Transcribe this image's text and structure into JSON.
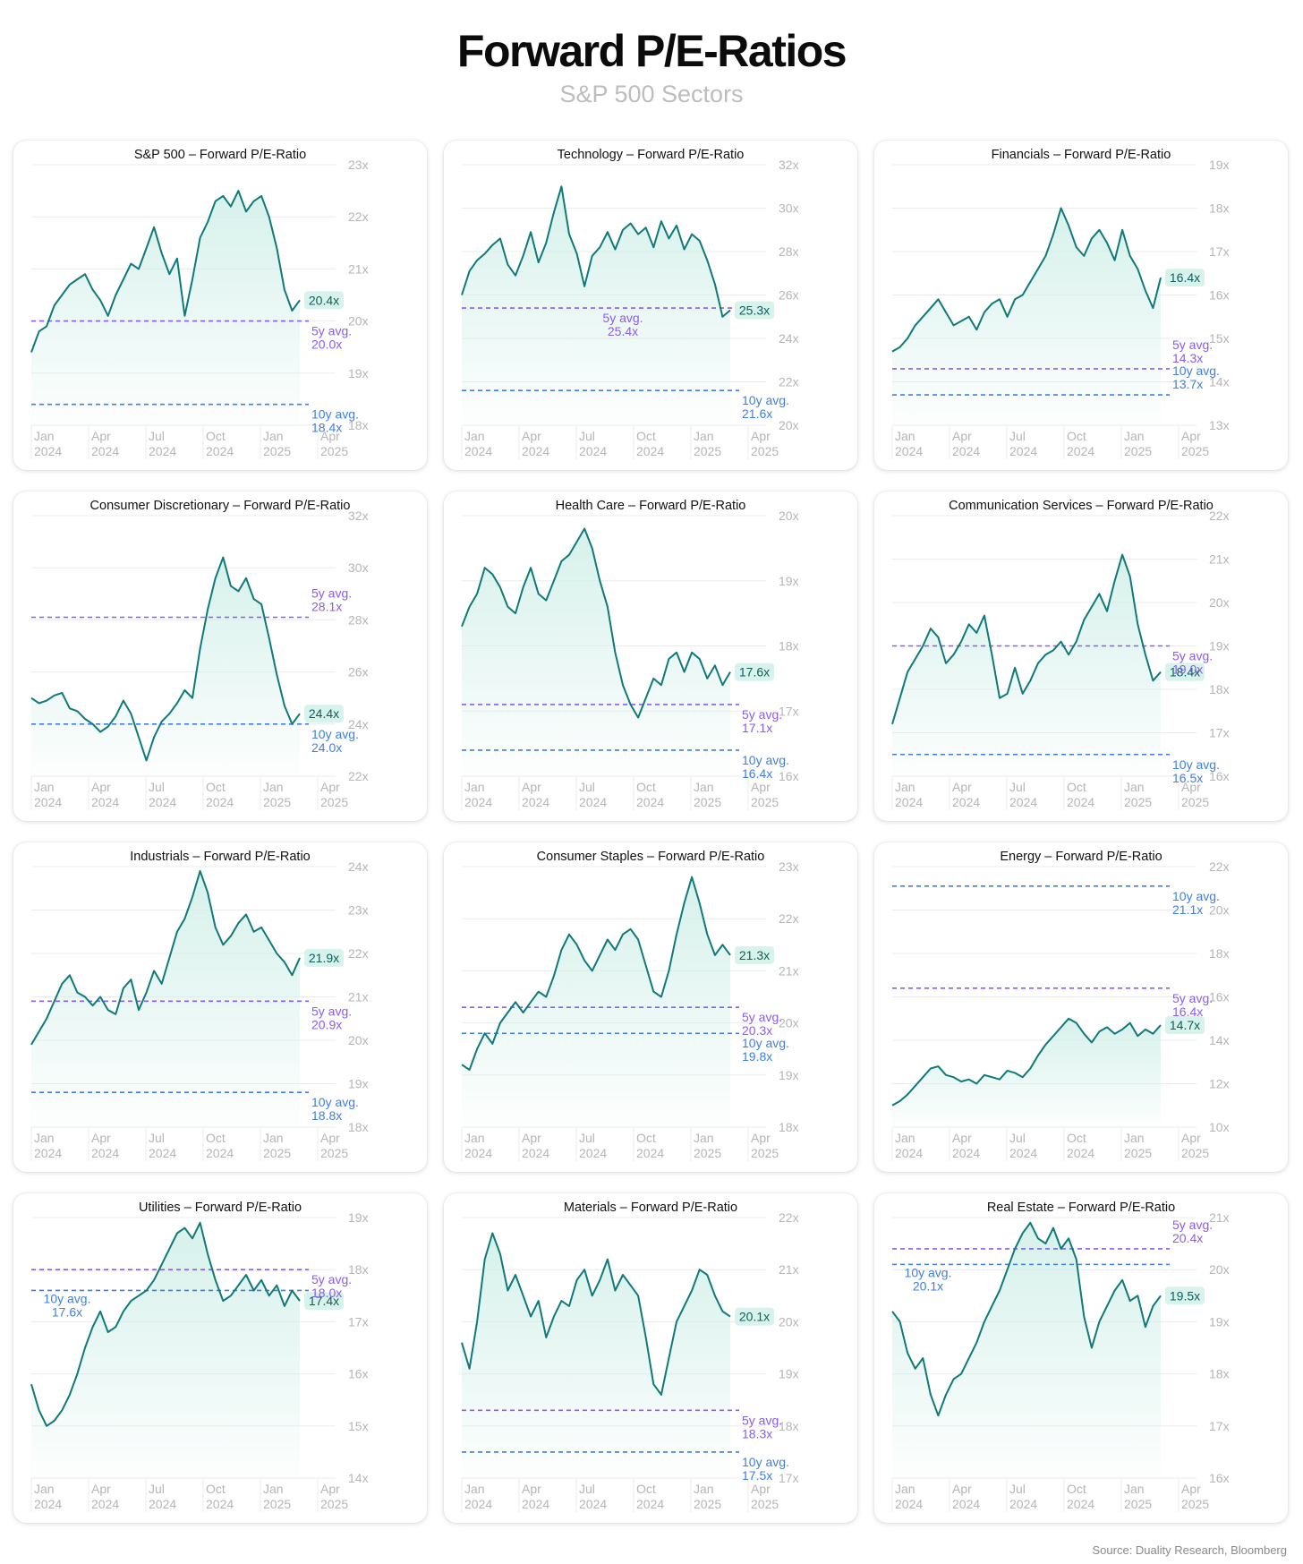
{
  "title": "Forward P/E-Ratios",
  "subtitle": "S&P 500 Sectors",
  "source": "Source: Duality Research, Bloomberg",
  "colors": {
    "line": "#0f7a78",
    "fill": "#d4f0ea",
    "avg5": "#8a5cf0",
    "avg10": "#3f7fe0",
    "badge": "#d8f3ec",
    "grid": "#ebebeb",
    "tick": "#b5b5b5"
  },
  "x_ticks": [
    {
      "month": "Jan",
      "year": "2024"
    },
    {
      "month": "Apr",
      "year": "2024"
    },
    {
      "month": "Jul",
      "year": "2024"
    },
    {
      "month": "Oct",
      "year": "2024"
    },
    {
      "month": "Jan",
      "year": "2025"
    },
    {
      "month": "Apr",
      "year": "2025"
    }
  ],
  "chart_data": [
    {
      "type": "line",
      "title": "S&P 500 – Forward P/E-Ratio",
      "ylim": [
        18,
        23
      ],
      "y_ticks": [
        "18x",
        "19x",
        "20x",
        "21x",
        "22x",
        "23x"
      ],
      "current": 20.4,
      "current_label": "20.4x",
      "avg5": 20.0,
      "avg5_label": [
        "5y avg.",
        "20.0x"
      ],
      "avg10": 18.4,
      "avg10_label": [
        "10y avg.",
        "18.4x"
      ],
      "series": [
        {
          "values": [
            19.4,
            19.8,
            19.9,
            20.3,
            20.5,
            20.7,
            20.8,
            20.9,
            20.6,
            20.4,
            20.1,
            20.5,
            20.8,
            21.1,
            21.0,
            21.4,
            21.8,
            21.3,
            20.9,
            21.2,
            20.1,
            20.8,
            21.6,
            21.9,
            22.3,
            22.4,
            22.2,
            22.5,
            22.1,
            22.3,
            22.4,
            22.0,
            21.4,
            20.6,
            20.2,
            20.4
          ]
        }
      ],
      "label_pos": {
        "current": "right",
        "avg5": "below",
        "avg10": "below"
      }
    },
    {
      "type": "line",
      "title": "Technology – Forward P/E-Ratio",
      "ylim": [
        20,
        32
      ],
      "y_ticks": [
        "20x",
        "22x",
        "24x",
        "26x",
        "28x",
        "30x",
        "32x"
      ],
      "current": 25.3,
      "current_label": "25.3x",
      "avg5": 25.4,
      "avg5_label": [
        "5y avg.",
        "25.4x"
      ],
      "avg10": 21.6,
      "avg10_label": [
        "10y avg.",
        "21.6x"
      ],
      "series": [
        {
          "values": [
            26.0,
            27.1,
            27.6,
            27.9,
            28.3,
            28.6,
            27.4,
            26.9,
            27.8,
            28.9,
            27.5,
            28.4,
            29.8,
            31.0,
            28.8,
            27.9,
            26.4,
            27.8,
            28.2,
            28.9,
            28.1,
            29.0,
            29.3,
            28.8,
            29.1,
            28.2,
            29.4,
            28.6,
            29.2,
            28.1,
            28.8,
            28.5,
            27.6,
            26.5,
            25.0,
            25.3
          ]
        }
      ],
      "label_pos": {
        "current": "right",
        "avg5": "mid-below",
        "avg10": "below"
      }
    },
    {
      "type": "line",
      "title": "Financials – Forward P/E-Ratio",
      "ylim": [
        13,
        19
      ],
      "y_ticks": [
        "13x",
        "14x",
        "15x",
        "16x",
        "17x",
        "18x",
        "19x"
      ],
      "current": 16.4,
      "current_label": "16.4x",
      "avg5": 14.3,
      "avg5_label": [
        "5y avg.",
        "14.3x"
      ],
      "avg10": 13.7,
      "avg10_label": [
        "10y avg.",
        "13.7x"
      ],
      "series": [
        {
          "values": [
            14.7,
            14.8,
            15.0,
            15.3,
            15.5,
            15.7,
            15.9,
            15.6,
            15.3,
            15.4,
            15.5,
            15.2,
            15.6,
            15.8,
            15.9,
            15.5,
            15.9,
            16.0,
            16.3,
            16.6,
            16.9,
            17.4,
            18.0,
            17.6,
            17.1,
            16.9,
            17.3,
            17.5,
            17.2,
            16.8,
            17.5,
            16.9,
            16.6,
            16.1,
            15.7,
            16.4
          ]
        }
      ],
      "label_pos": {
        "current": "right",
        "avg5": "above",
        "avg10": "above"
      }
    },
    {
      "type": "line",
      "title": "Consumer Discretionary – Forward P/E-Ratio",
      "ylim": [
        22,
        32
      ],
      "y_ticks": [
        "22x",
        "24x",
        "26x",
        "28x",
        "30x",
        "32x"
      ],
      "current": 24.4,
      "current_label": "24.4x",
      "avg5": 28.1,
      "avg5_label": [
        "5y avg.",
        "28.1x"
      ],
      "avg10": 24.0,
      "avg10_label": [
        "10y avg.",
        "24.0x"
      ],
      "series": [
        {
          "values": [
            25.0,
            24.8,
            24.9,
            25.1,
            25.2,
            24.6,
            24.5,
            24.2,
            24.0,
            23.7,
            23.9,
            24.3,
            24.9,
            24.4,
            23.5,
            22.6,
            23.5,
            24.1,
            24.4,
            24.8,
            25.3,
            25.0,
            26.9,
            28.4,
            29.6,
            30.4,
            29.3,
            29.1,
            29.6,
            28.8,
            28.6,
            27.3,
            25.9,
            24.7,
            24.0,
            24.4
          ]
        }
      ],
      "label_pos": {
        "current": "right",
        "avg5": "above",
        "avg10": "below"
      }
    },
    {
      "type": "line",
      "title": "Health Care – Forward P/E-Ratio",
      "ylim": [
        16,
        20
      ],
      "y_ticks": [
        "16x",
        "17x",
        "18x",
        "19x",
        "20x"
      ],
      "current": 17.6,
      "current_label": "17.6x",
      "avg5": 17.1,
      "avg5_label": [
        "5y avg.",
        "17.1x"
      ],
      "avg10": 16.4,
      "avg10_label": [
        "10y avg.",
        "16.4x"
      ],
      "series": [
        {
          "values": [
            18.3,
            18.6,
            18.8,
            19.2,
            19.1,
            18.9,
            18.6,
            18.5,
            18.9,
            19.2,
            18.8,
            18.7,
            19.0,
            19.3,
            19.4,
            19.6,
            19.8,
            19.5,
            19.0,
            18.6,
            17.9,
            17.4,
            17.1,
            16.9,
            17.2,
            17.5,
            17.4,
            17.8,
            17.9,
            17.6,
            17.9,
            17.8,
            17.5,
            17.7,
            17.4,
            17.6
          ]
        }
      ],
      "label_pos": {
        "current": "right",
        "avg5": "below",
        "avg10": "below"
      }
    },
    {
      "type": "line",
      "title": "Communication Services – Forward P/E-Ratio",
      "ylim": [
        16,
        22
      ],
      "y_ticks": [
        "16x",
        "17x",
        "18x",
        "19x",
        "20x",
        "21x",
        "22x"
      ],
      "current": 18.4,
      "current_label": "18.4x",
      "avg5": 19.0,
      "avg5_label": [
        "5y avg.",
        "19.0x"
      ],
      "avg10": 16.5,
      "avg10_label": [
        "10y avg.",
        "16.5x"
      ],
      "series": [
        {
          "values": [
            17.2,
            17.8,
            18.4,
            18.7,
            19.0,
            19.4,
            19.2,
            18.6,
            18.8,
            19.1,
            19.5,
            19.3,
            19.7,
            18.8,
            17.8,
            17.9,
            18.5,
            17.9,
            18.2,
            18.6,
            18.8,
            18.9,
            19.1,
            18.8,
            19.1,
            19.6,
            19.9,
            20.2,
            19.8,
            20.5,
            21.1,
            20.6,
            19.5,
            18.8,
            18.2,
            18.4
          ]
        }
      ],
      "label_pos": {
        "current": "right",
        "avg5": "below",
        "avg10": "below"
      }
    },
    {
      "type": "line",
      "title": "Industrials – Forward P/E-Ratio",
      "ylim": [
        18,
        24
      ],
      "y_ticks": [
        "18x",
        "19x",
        "20x",
        "21x",
        "22x",
        "23x",
        "24x"
      ],
      "current": 21.9,
      "current_label": "21.9x",
      "avg5": 20.9,
      "avg5_label": [
        "5y avg.",
        "20.9x"
      ],
      "avg10": 18.8,
      "avg10_label": [
        "10y avg.",
        "18.8x"
      ],
      "series": [
        {
          "values": [
            19.9,
            20.2,
            20.5,
            20.9,
            21.3,
            21.5,
            21.1,
            21.0,
            20.8,
            21.0,
            20.7,
            20.6,
            21.2,
            21.4,
            20.7,
            21.1,
            21.6,
            21.3,
            21.9,
            22.5,
            22.8,
            23.3,
            23.9,
            23.4,
            22.6,
            22.2,
            22.4,
            22.7,
            22.9,
            22.5,
            22.6,
            22.3,
            22.0,
            21.8,
            21.5,
            21.9
          ]
        }
      ],
      "label_pos": {
        "current": "right",
        "avg5": "below",
        "avg10": "below"
      }
    },
    {
      "type": "line",
      "title": "Consumer Staples – Forward P/E-Ratio",
      "ylim": [
        18,
        23
      ],
      "y_ticks": [
        "18x",
        "19x",
        "20x",
        "21x",
        "22x",
        "23x"
      ],
      "current": 21.3,
      "current_label": "21.3x",
      "avg5": 20.3,
      "avg5_label": [
        "5y avg.",
        "20.3x"
      ],
      "avg10": 19.8,
      "avg10_label": [
        "10y avg.",
        "19.8x"
      ],
      "series": [
        {
          "values": [
            19.2,
            19.1,
            19.5,
            19.8,
            19.6,
            20.0,
            20.2,
            20.4,
            20.2,
            20.4,
            20.6,
            20.5,
            20.9,
            21.4,
            21.7,
            21.5,
            21.2,
            21.0,
            21.3,
            21.6,
            21.4,
            21.7,
            21.8,
            21.6,
            21.1,
            20.6,
            20.5,
            21.0,
            21.7,
            22.3,
            22.8,
            22.3,
            21.7,
            21.3,
            21.5,
            21.3
          ]
        }
      ],
      "label_pos": {
        "current": "right",
        "avg5": "below",
        "avg10": "below"
      }
    },
    {
      "type": "line",
      "title": "Energy – Forward P/E-Ratio",
      "ylim": [
        10,
        22
      ],
      "y_ticks": [
        "10x",
        "12x",
        "14x",
        "16x",
        "18x",
        "20x",
        "22x"
      ],
      "current": 14.7,
      "current_label": "14.7x",
      "avg5": 16.4,
      "avg5_label": [
        "5y avg.",
        "16.4x"
      ],
      "avg10": 21.1,
      "avg10_label": [
        "10y avg.",
        "21.1x"
      ],
      "series": [
        {
          "values": [
            11.0,
            11.2,
            11.5,
            11.9,
            12.3,
            12.7,
            12.8,
            12.4,
            12.3,
            12.1,
            12.2,
            12.0,
            12.4,
            12.3,
            12.2,
            12.6,
            12.5,
            12.3,
            12.7,
            13.3,
            13.8,
            14.2,
            14.6,
            15.0,
            14.8,
            14.3,
            13.9,
            14.4,
            14.6,
            14.3,
            14.5,
            14.8,
            14.2,
            14.5,
            14.3,
            14.7
          ]
        }
      ],
      "label_pos": {
        "current": "right",
        "avg5": "below",
        "avg10": "below"
      }
    },
    {
      "type": "line",
      "title": "Utilities – Forward P/E-Ratio",
      "ylim": [
        14,
        19
      ],
      "y_ticks": [
        "14x",
        "15x",
        "16x",
        "17x",
        "18x",
        "19x"
      ],
      "current": 17.4,
      "current_label": "17.4x",
      "avg5": 18.0,
      "avg5_label": [
        "5y avg.",
        "18.0x"
      ],
      "avg10": 17.6,
      "avg10_label": [
        "10y avg.",
        "17.6x"
      ],
      "series": [
        {
          "values": [
            15.8,
            15.3,
            15.0,
            15.1,
            15.3,
            15.6,
            16.0,
            16.5,
            16.9,
            17.2,
            16.8,
            16.9,
            17.2,
            17.4,
            17.5,
            17.6,
            17.8,
            18.1,
            18.4,
            18.7,
            18.8,
            18.6,
            18.9,
            18.3,
            17.8,
            17.4,
            17.5,
            17.7,
            17.9,
            17.6,
            17.8,
            17.5,
            17.7,
            17.3,
            17.6,
            17.4
          ]
        }
      ],
      "label_pos": {
        "current": "right",
        "avg5": "below",
        "avg10": "left-below"
      }
    },
    {
      "type": "line",
      "title": "Materials – Forward P/E-Ratio",
      "ylim": [
        17,
        22
      ],
      "y_ticks": [
        "17x",
        "18x",
        "19x",
        "20x",
        "21x",
        "22x"
      ],
      "current": 20.1,
      "current_label": "20.1x",
      "avg5": 18.3,
      "avg5_label": [
        "5y avg.",
        "18.3x"
      ],
      "avg10": 17.5,
      "avg10_label": [
        "10y avg.",
        "17.5x"
      ],
      "series": [
        {
          "values": [
            19.6,
            19.1,
            20.0,
            21.2,
            21.7,
            21.3,
            20.6,
            20.9,
            20.5,
            20.1,
            20.4,
            19.7,
            20.1,
            20.4,
            20.3,
            20.8,
            21.0,
            20.5,
            20.8,
            21.2,
            20.6,
            20.9,
            20.7,
            20.5,
            19.7,
            18.8,
            18.6,
            19.3,
            20.0,
            20.3,
            20.6,
            21.0,
            20.9,
            20.5,
            20.2,
            20.1
          ]
        }
      ],
      "label_pos": {
        "current": "right",
        "avg5": "below",
        "avg10": "below"
      }
    },
    {
      "type": "line",
      "title": "Real Estate – Forward P/E-Ratio",
      "ylim": [
        16,
        21
      ],
      "y_ticks": [
        "16x",
        "17x",
        "18x",
        "19x",
        "20x",
        "21x"
      ],
      "current": 19.5,
      "current_label": "19.5x",
      "avg5": 20.4,
      "avg5_label": [
        "5y avg.",
        "20.4x"
      ],
      "avg10": 20.1,
      "avg10_label": [
        "10y avg.",
        "20.1x"
      ],
      "series": [
        {
          "values": [
            19.2,
            19.0,
            18.4,
            18.1,
            18.3,
            17.6,
            17.2,
            17.6,
            17.9,
            18.0,
            18.3,
            18.6,
            19.0,
            19.3,
            19.6,
            20.0,
            20.4,
            20.7,
            20.9,
            20.6,
            20.5,
            20.8,
            20.4,
            20.6,
            20.2,
            19.1,
            18.5,
            19.0,
            19.3,
            19.6,
            19.8,
            19.4,
            19.5,
            18.9,
            19.3,
            19.5
          ]
        }
      ],
      "label_pos": {
        "current": "right",
        "avg5": "above",
        "avg10": "left-below"
      }
    }
  ]
}
